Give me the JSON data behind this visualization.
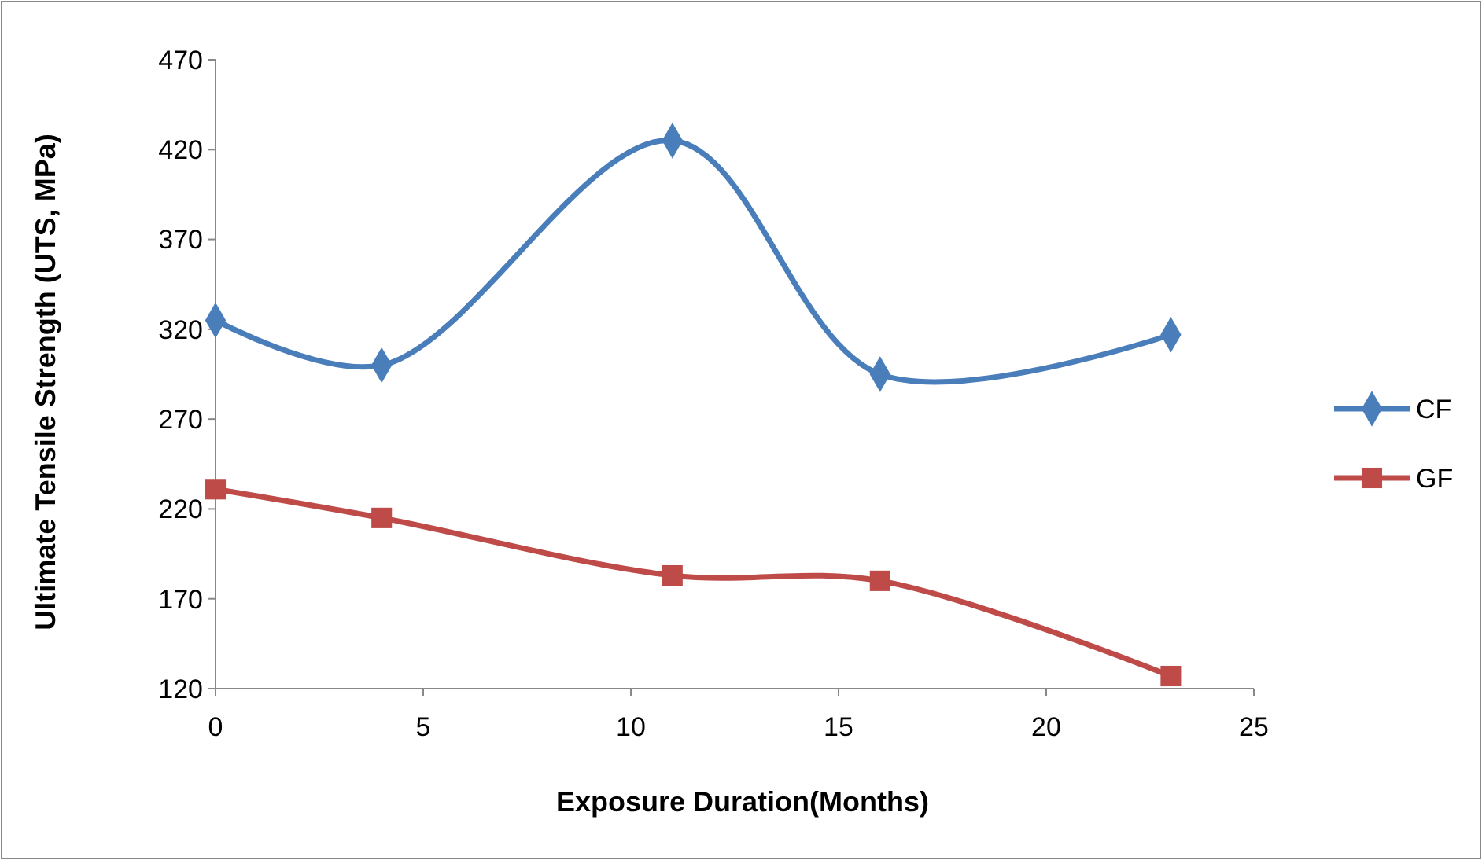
{
  "chart_data": {
    "type": "line",
    "xlabel": "Exposure Duration(Months)",
    "ylabel": "Ultimate Tensile Strength (UTS, MPa)",
    "x": [
      0,
      4,
      11,
      16,
      23
    ],
    "series": [
      {
        "name": "CF",
        "color": "#4a7ebb",
        "marker": "diamond",
        "values": [
          325,
          300,
          425,
          295,
          317
        ]
      },
      {
        "name": "GF",
        "color": "#be4b48",
        "marker": "square",
        "values": [
          231,
          215,
          183,
          180,
          127
        ]
      }
    ],
    "xlim": [
      0,
      25
    ],
    "xticks": [
      0,
      5,
      10,
      15,
      20,
      25
    ],
    "ylim": [
      120,
      470
    ],
    "yticks": [
      120,
      170,
      220,
      270,
      320,
      370,
      420,
      470
    ],
    "grid": false,
    "legend": "right",
    "line_style": "solid"
  }
}
